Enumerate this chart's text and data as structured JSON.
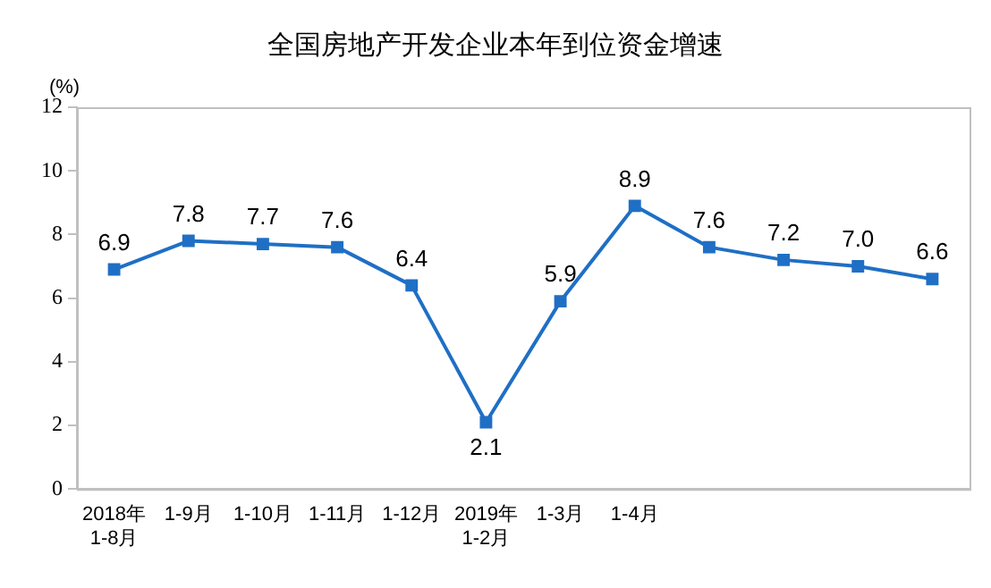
{
  "chart_data": {
    "type": "line",
    "title": "全国房地产开发企业本年到位资金增速",
    "ylabel": "(%)",
    "categories": [
      "2018年\n1-8月",
      "1-9月",
      "1-10月",
      "1-11月",
      "1-12月",
      "2019年\n1-2月",
      "1-3月",
      "1-4月",
      null,
      null,
      null,
      null
    ],
    "series": [
      {
        "color": "#1f6fc5",
        "values": [
          6.9,
          7.8,
          7.7,
          7.6,
          6.4,
          2.1,
          5.9,
          8.9,
          7.6,
          7.2,
          7.0,
          6.6
        ],
        "value_labels": [
          "6.9",
          "7.8",
          "7.7",
          "7.6",
          "6.4",
          "2.1",
          "5.9",
          "8.9",
          "7.6",
          "7.2",
          "7.0",
          "6.6"
        ]
      }
    ],
    "ylim": [
      0,
      12
    ],
    "yticks": [
      0,
      2,
      4,
      6,
      8,
      10,
      12
    ],
    "grid": false,
    "legend": false,
    "marker": "square",
    "line_style": "solid"
  }
}
